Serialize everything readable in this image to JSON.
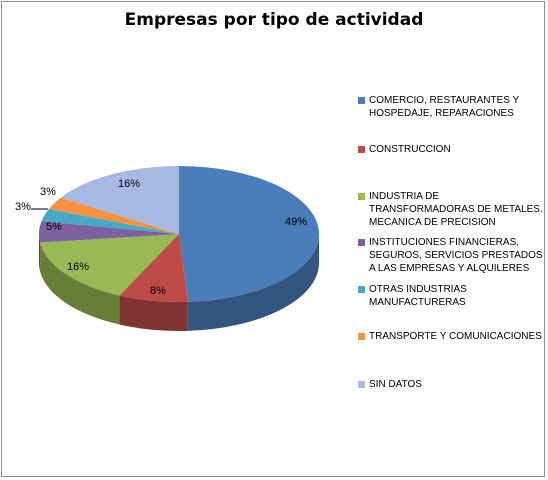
{
  "chart_data": {
    "type": "pie",
    "title": "Empresas por tipo de actividad",
    "slices": [
      {
        "label": "COMERCIO, RESTAURANTES Y HOSPEDAJE, REPARACIONES",
        "value": 49,
        "value_label": "49%",
        "color": "#4a7ebb"
      },
      {
        "label": "CONSTRUCCION",
        "value": 8,
        "value_label": "8%",
        "color": "#be4b48"
      },
      {
        "label": "INDUSTRIA DE TRANSFORMADORAS DE METALES. MECANICA DE PRECISION",
        "value": 16,
        "value_label": "16%",
        "color": "#98b954"
      },
      {
        "label": "INSTITUCIONES FINANCIERAS, SEGUROS, SERVICIOS PRESTADOS A LAS EMPRESAS Y ALQUILERES",
        "value": 5,
        "value_label": "5%",
        "color": "#7d60a0"
      },
      {
        "label": "OTRAS INDUSTRIAS MANUFACTURERAS",
        "value": 3,
        "value_label": "3%",
        "color": "#46aac5"
      },
      {
        "label": "TRANSPORTE Y COMUNICACIONES",
        "value": 3,
        "value_label": "3%",
        "color": "#f69240"
      },
      {
        "label": "SIN DATOS",
        "value": 16,
        "value_label": "16%",
        "color": "#a7b9e3"
      }
    ],
    "legend_position": "right",
    "style": "3d"
  }
}
